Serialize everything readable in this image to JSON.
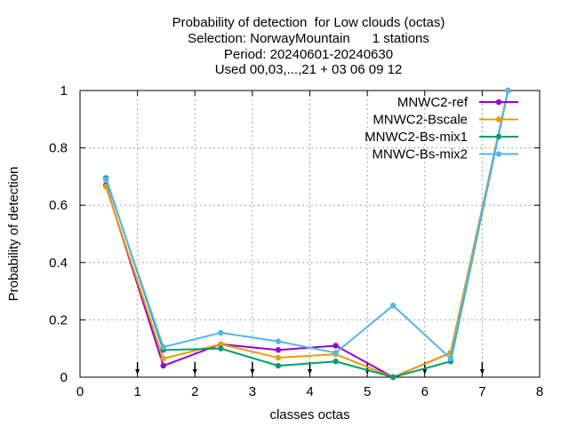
{
  "chart_data": {
    "type": "line",
    "title_lines": [
      "Probability of detection  for Low clouds (octas)",
      "Selection: NorwayMountain      1 stations",
      "Period: 20240601-20240630",
      "Used 00,03,...,21 + 03 06 09 12"
    ],
    "xlabel": "classes octas",
    "ylabel": "Probability of detection",
    "xlim": [
      0,
      8
    ],
    "ylim": [
      0,
      1
    ],
    "x_ticks": [
      "0",
      "1",
      "2",
      "3",
      "4",
      "5",
      "6",
      "7",
      "8"
    ],
    "y_ticks": [
      "0",
      "0.2",
      "0.4",
      "0.6",
      "0.8",
      "1"
    ],
    "grid": true,
    "legend_position": "top-right",
    "x": [
      0.45,
      1.45,
      2.45,
      3.45,
      4.45,
      5.45,
      6.45,
      7.45
    ],
    "series": [
      {
        "name": "MNWC2-ref",
        "color": "#9400d3",
        "marker": "circle-icon",
        "values": [
          0.67,
          0.04,
          0.115,
          0.095,
          0.11,
          0.0,
          0.085,
          1.0
        ]
      },
      {
        "name": "MNWC2-Bscale",
        "color": "#e69f00",
        "marker": "circle-icon",
        "values": [
          0.665,
          0.065,
          0.115,
          0.068,
          0.08,
          0.0,
          0.085,
          1.0
        ]
      },
      {
        "name": "MNWC2-Bs-mix1",
        "color": "#009e73",
        "marker": "circle-icon",
        "values": [
          0.695,
          0.095,
          0.1,
          0.04,
          0.055,
          0.0,
          0.055,
          1.0
        ]
      },
      {
        "name": "MNWC-Bs-mix2",
        "color": "#56b4e9",
        "marker": "circle-icon",
        "values": [
          0.69,
          0.105,
          0.155,
          0.125,
          0.085,
          0.25,
          0.065,
          1.0
        ]
      }
    ],
    "arrow_markers_x": [
      1,
      2,
      3,
      4,
      5,
      6,
      7
    ]
  }
}
